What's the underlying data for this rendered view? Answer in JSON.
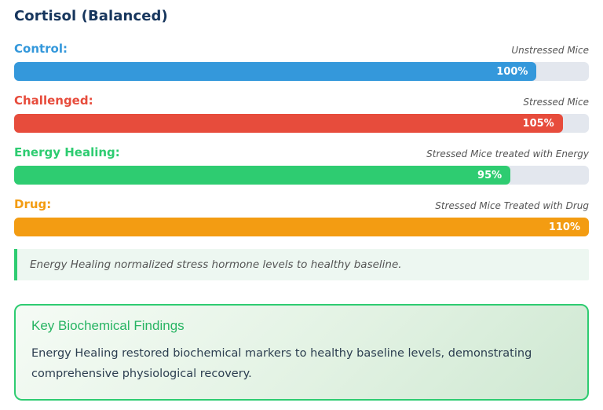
{
  "chart_data": {
    "type": "bar",
    "orientation": "horizontal",
    "title": "Cortisol (Balanced)",
    "unit": "%",
    "max_value": 110,
    "bars": [
      {
        "label": "Control:",
        "descriptor": "Unstressed Mice",
        "value": 100,
        "value_label": "100%",
        "color": "#3498db"
      },
      {
        "label": "Challenged:",
        "descriptor": "Stressed Mice",
        "value": 105,
        "value_label": "105%",
        "color": "#e74c3c"
      },
      {
        "label": "Energy Healing:",
        "descriptor": "Stressed Mice treated with Energy",
        "value": 95,
        "value_label": "95%",
        "color": "#2ecc71"
      },
      {
        "label": "Drug:",
        "descriptor": "Stressed Mice Treated with Drug",
        "value": 110,
        "value_label": "110%",
        "color": "#f39c12"
      }
    ]
  },
  "note": {
    "text": "Energy Healing normalized stress hormone levels to healthy baseline."
  },
  "findings": {
    "heading": "Key Biochemical Findings",
    "body": "Energy Healing restored biochemical markers to healthy baseline levels, demonstrating comprehensive physiological recovery."
  },
  "colors": {
    "title": "#17365d",
    "green": "#2ecc71",
    "track": "#e3e7ee",
    "note_bg": "#edf7f1",
    "findings_heading": "#27b463",
    "body_text": "#2c3e50"
  }
}
